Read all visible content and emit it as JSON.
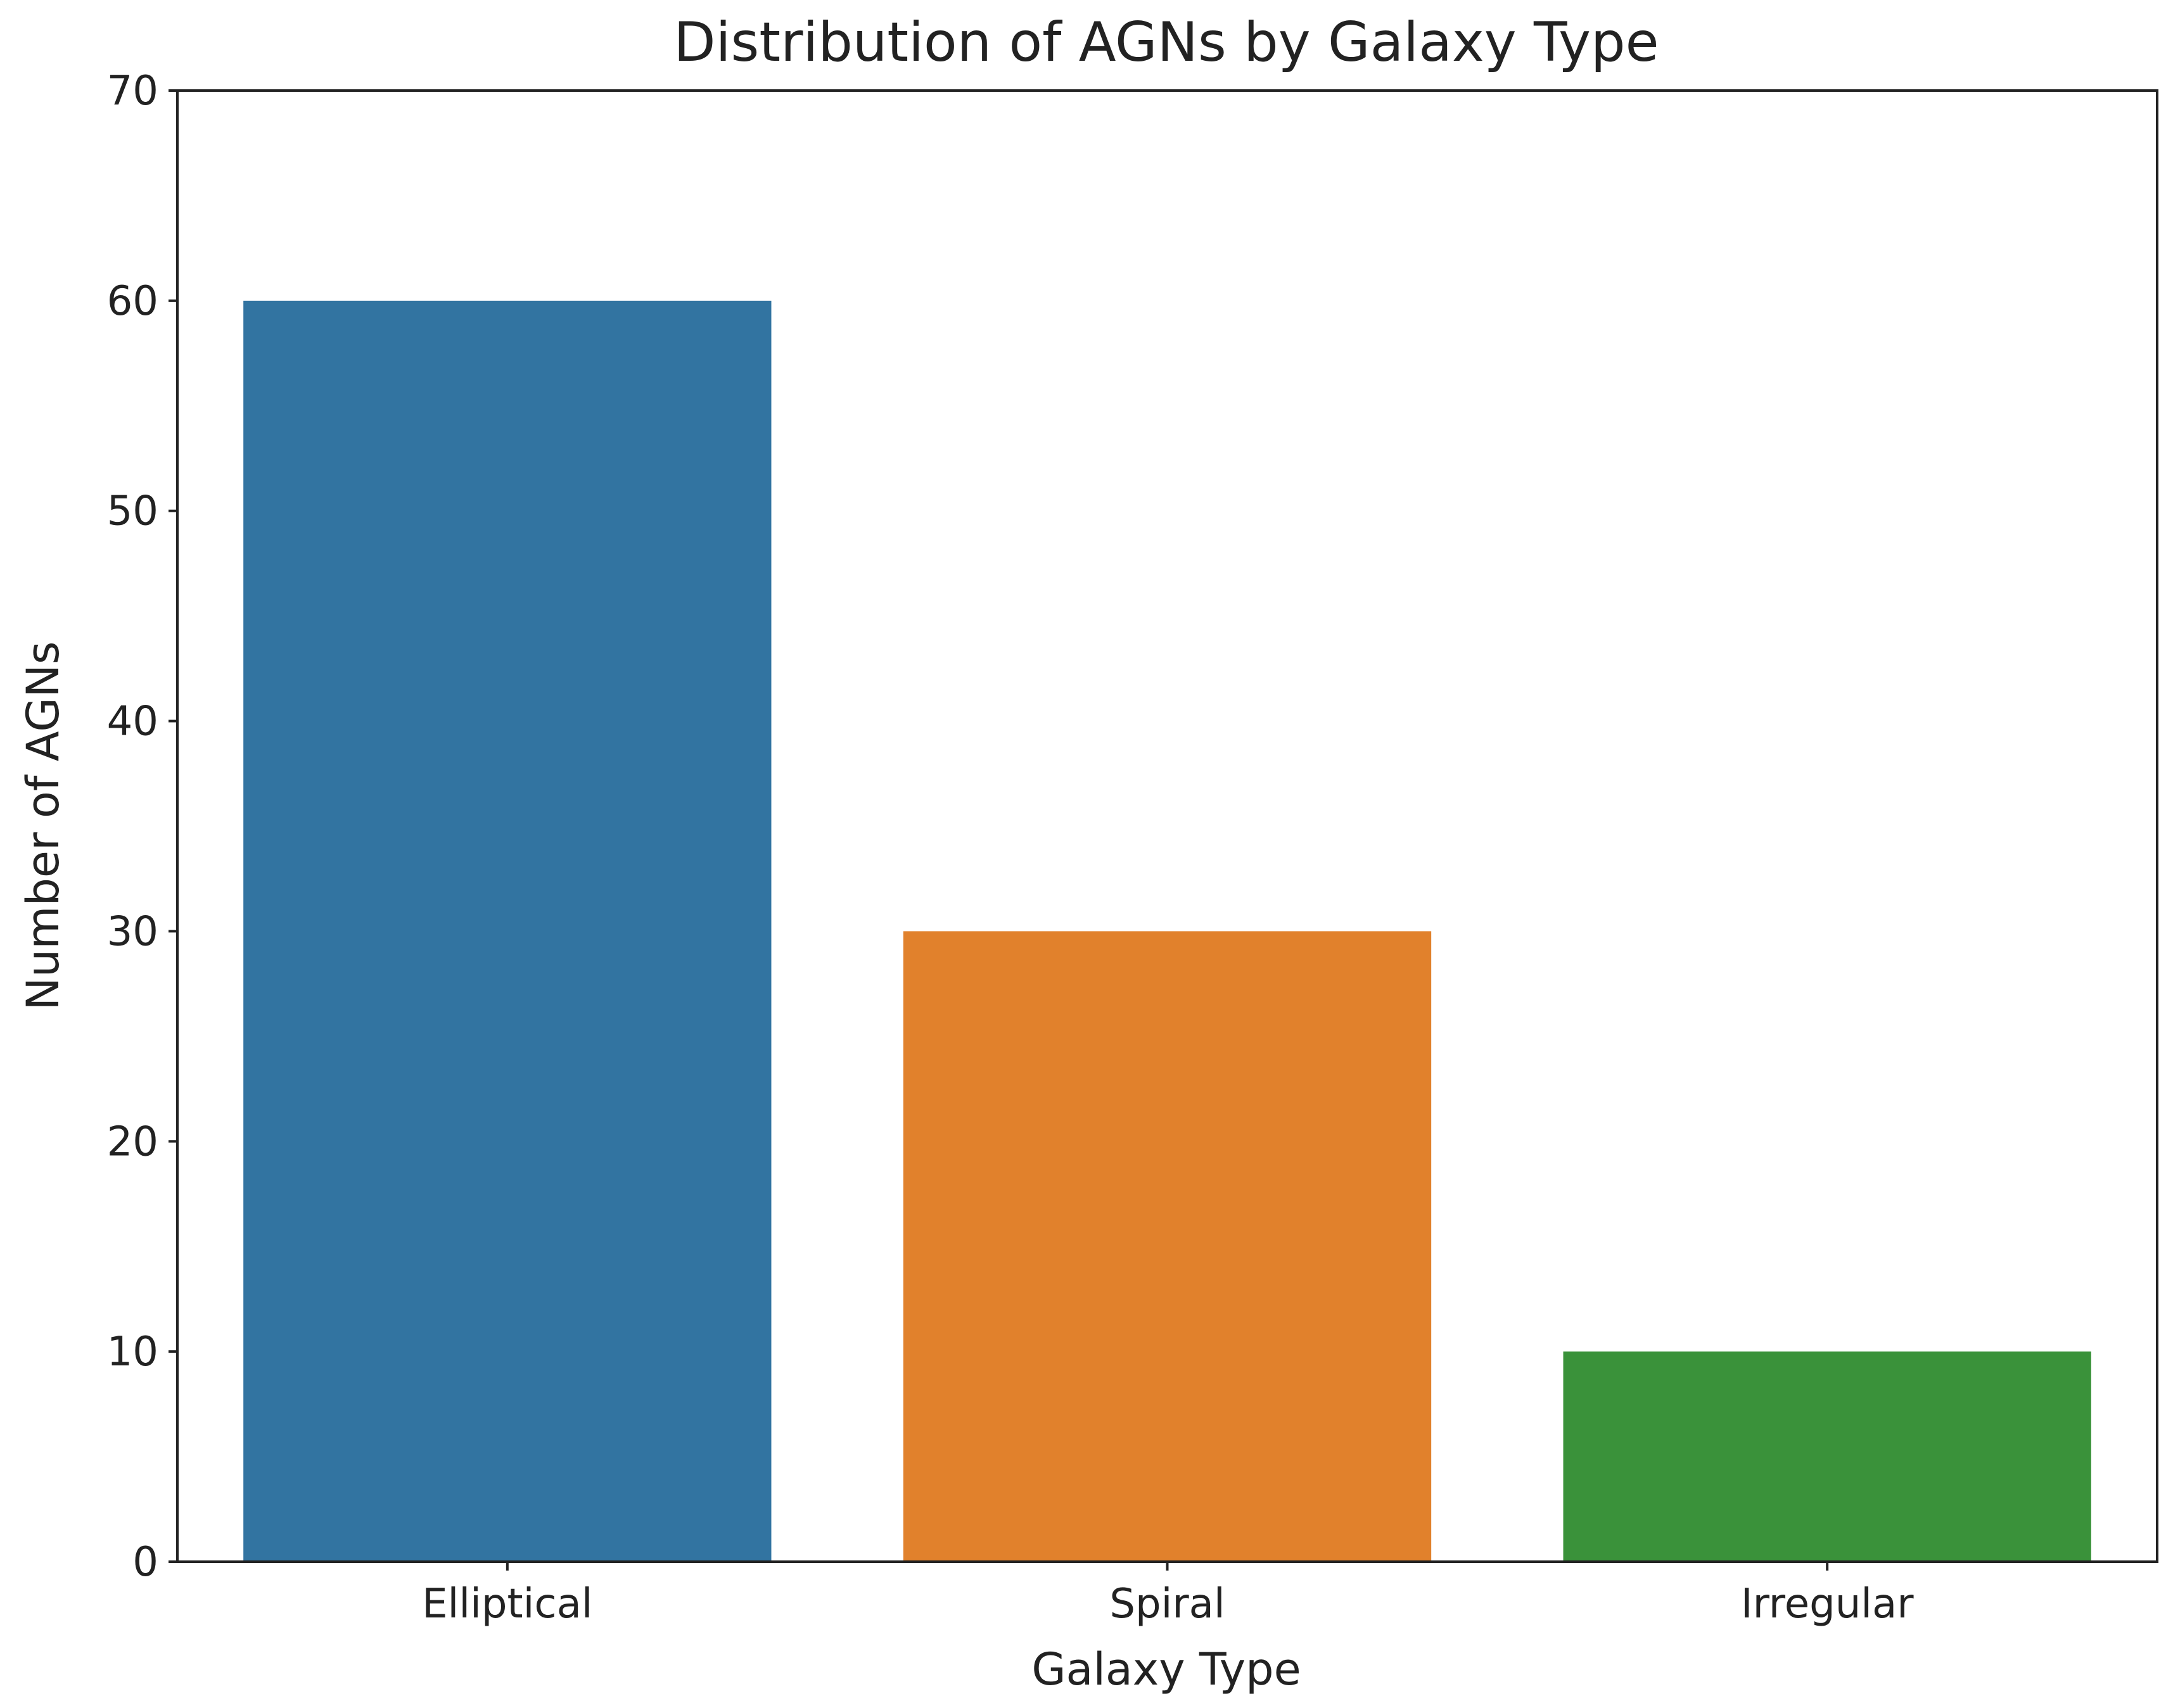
{
  "chart_data": {
    "type": "bar",
    "title": "Distribution of AGNs by Galaxy Type",
    "xlabel": "Galaxy Type",
    "ylabel": "Number of AGNs",
    "categories": [
      "Elliptical",
      "Spiral",
      "Irregular"
    ],
    "values": [
      60,
      30,
      10
    ],
    "colors": [
      "#3274a1",
      "#e1812c",
      "#3a923a"
    ],
    "ylim": [
      0,
      70
    ],
    "yticks": [
      0,
      10,
      20,
      30,
      40,
      50,
      60,
      70
    ],
    "grid": false,
    "legend": "none"
  }
}
